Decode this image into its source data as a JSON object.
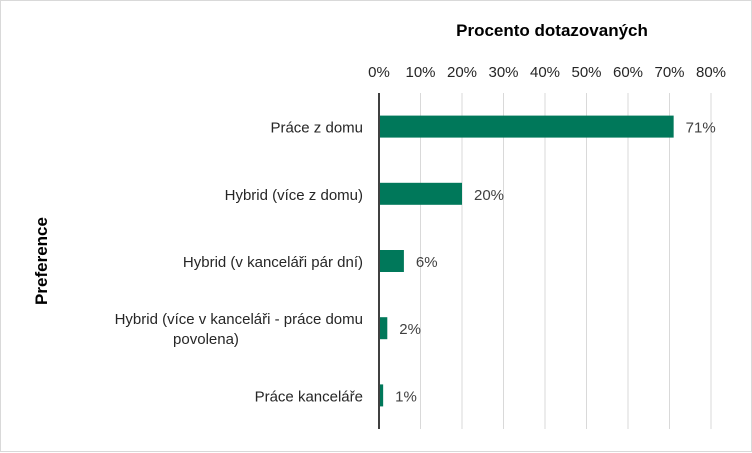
{
  "chart_data": {
    "type": "bar",
    "orientation": "horizontal",
    "title": "Procento dotazovaných",
    "xlabel": "Procento dotazovaných",
    "ylabel": "Preference",
    "xlim": [
      0,
      0.8
    ],
    "xticks": [
      "0%",
      "10%",
      "20%",
      "30%",
      "40%",
      "50%",
      "60%",
      "70%",
      "80%"
    ],
    "x_axis_position": "top",
    "grid": true,
    "legend": "none",
    "bar_color": "#00785A",
    "categories": [
      [
        "Práce z domu"
      ],
      [
        "Hybrid (více z domu)"
      ],
      [
        "Hybrid (v kanceláři pár dní)"
      ],
      [
        "Hybrid (více v kanceláři - práce  domu",
        "povolena)"
      ],
      [
        "Práce  kanceláře"
      ]
    ],
    "values": [
      0.71,
      0.2,
      0.06,
      0.02,
      0.01
    ],
    "data_labels": [
      "71%",
      "20%",
      "6%",
      "2%",
      "1%"
    ]
  }
}
